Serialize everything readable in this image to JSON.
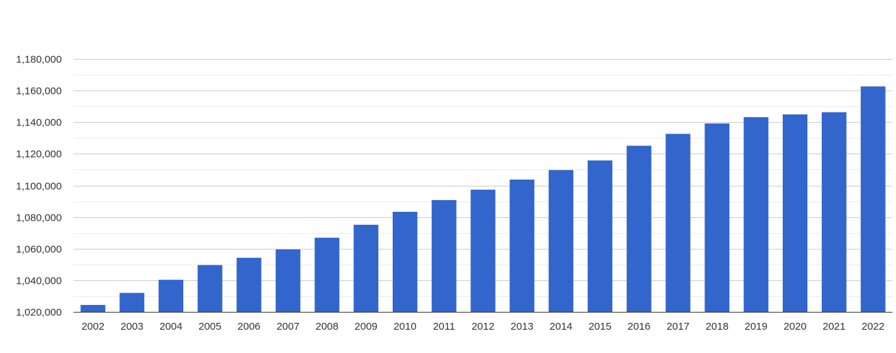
{
  "chart_data": {
    "type": "bar",
    "title": "",
    "xlabel": "",
    "ylabel": "",
    "categories": [
      "2002",
      "2003",
      "2004",
      "2005",
      "2006",
      "2007",
      "2008",
      "2009",
      "2010",
      "2011",
      "2012",
      "2013",
      "2014",
      "2015",
      "2016",
      "2017",
      "2018",
      "2019",
      "2020",
      "2021",
      "2022"
    ],
    "values": [
      1024400,
      1032000,
      1040300,
      1049600,
      1054200,
      1059500,
      1066900,
      1075100,
      1083300,
      1090700,
      1097300,
      1103700,
      1109700,
      1115800,
      1125100,
      1132600,
      1139200,
      1143200,
      1144900,
      1146300,
      1162600
    ],
    "ylim": [
      1020000,
      1180000
    ],
    "yticks": [
      1020000,
      1040000,
      1060000,
      1080000,
      1100000,
      1120000,
      1140000,
      1160000,
      1180000
    ],
    "ytick_labels": [
      "1,020,000",
      "1,040,000",
      "1,060,000",
      "1,080,000",
      "1,100,000",
      "1,120,000",
      "1,140,000",
      "1,160,000",
      "1,180,000"
    ],
    "grid": true,
    "bar_color": "#3366cc",
    "gridline_color": "#cccccc",
    "minor_gridline_color": "#ebebeb"
  }
}
